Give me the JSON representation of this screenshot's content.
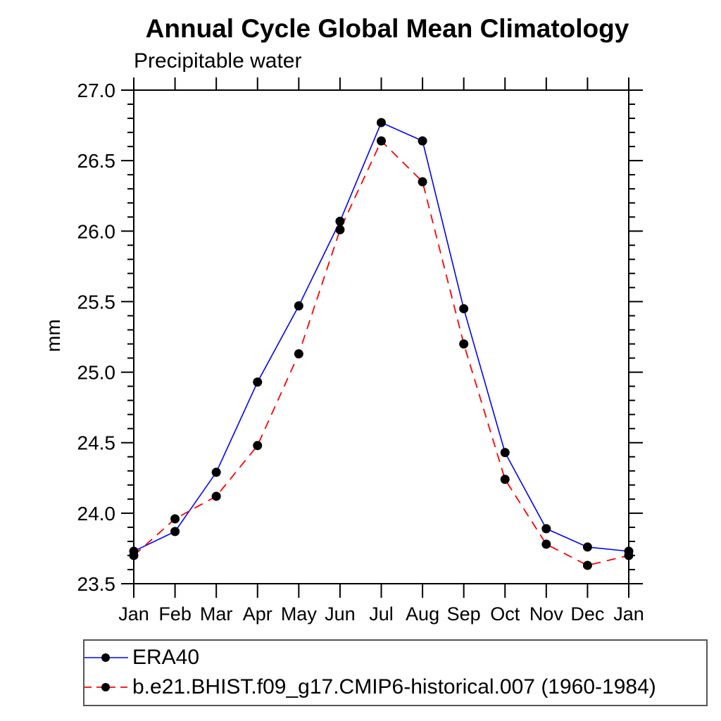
{
  "page": {
    "background": "#ffffff"
  },
  "chart_data": {
    "type": "line",
    "title": "Annual Cycle Global Mean Climatology",
    "subtitle": "Precipitable water",
    "ylabel": "mm",
    "xlabel": "",
    "categories": [
      "Jan",
      "Feb",
      "Mar",
      "Apr",
      "May",
      "Jun",
      "Jul",
      "Aug",
      "Sep",
      "Oct",
      "Nov",
      "Dec",
      "Jan"
    ],
    "ylim": [
      23.5,
      27.0
    ],
    "ytick_major_step": 0.5,
    "ytick_minor_step": 0.1,
    "grid": "off",
    "legend_position": "bottom-box",
    "frame_color": "#000000",
    "series": [
      {
        "name": "ERA40",
        "color": "#0000ff",
        "style": "solid",
        "marker": "filled-circle",
        "marker_color": "#000000",
        "values": [
          23.73,
          23.87,
          24.29,
          24.93,
          25.47,
          26.07,
          26.77,
          26.64,
          25.45,
          24.43,
          23.89,
          23.76,
          23.73
        ]
      },
      {
        "name": "b.e21.BHIST.f09_g17.CMIP6-historical.007 (1960-1984)",
        "color": "#ff0000",
        "style": "dashed",
        "marker": "filled-circle",
        "marker_color": "#000000",
        "values": [
          23.7,
          23.96,
          24.12,
          24.48,
          25.13,
          26.01,
          26.64,
          26.35,
          25.2,
          24.24,
          23.78,
          23.63,
          23.7
        ]
      }
    ]
  }
}
